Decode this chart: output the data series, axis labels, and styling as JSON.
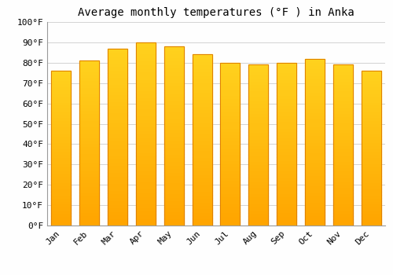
{
  "title": "Average monthly temperatures (°F ) in Anka",
  "months": [
    "Jan",
    "Feb",
    "Mar",
    "Apr",
    "May",
    "Jun",
    "Jul",
    "Aug",
    "Sep",
    "Oct",
    "Nov",
    "Dec"
  ],
  "values": [
    76,
    81,
    87,
    90,
    88,
    84,
    80,
    79,
    80,
    82,
    79,
    76
  ],
  "bar_color_main": "#FDB92E",
  "bar_edge_color": "#E08000",
  "ylim": [
    0,
    100
  ],
  "yticks": [
    0,
    10,
    20,
    30,
    40,
    50,
    60,
    70,
    80,
    90,
    100
  ],
  "ytick_labels": [
    "0°F",
    "10°F",
    "20°F",
    "30°F",
    "40°F",
    "50°F",
    "60°F",
    "70°F",
    "80°F",
    "90°F",
    "100°F"
  ],
  "background_color": "#FEFEFE",
  "grid_color": "#CCCCCC",
  "title_fontsize": 10,
  "tick_fontsize": 8,
  "font_family": "monospace"
}
